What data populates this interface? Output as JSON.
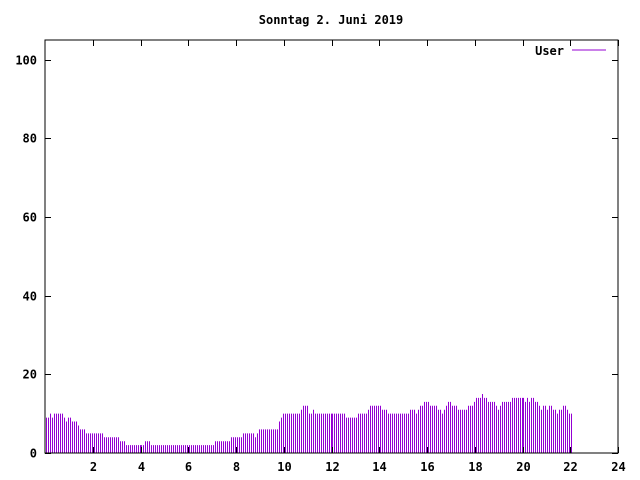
{
  "chart_data": {
    "type": "bar",
    "title": "Sonntag 2. Juni 2019",
    "xlabel": "",
    "ylabel": "",
    "xlim": [
      0,
      24
    ],
    "ylim": [
      0,
      105
    ],
    "x_ticks": [
      2,
      4,
      6,
      8,
      10,
      12,
      14,
      16,
      18,
      20,
      22,
      24
    ],
    "y_ticks": [
      0,
      20,
      40,
      60,
      80,
      100
    ],
    "grid": false,
    "legend_position": "top-right",
    "series": [
      {
        "name": "User",
        "color": "#9400d3",
        "interval_minutes": 5,
        "values": [
          9,
          9,
          10,
          9,
          10,
          10,
          10,
          10,
          10,
          9,
          8,
          9,
          9,
          8,
          8,
          8,
          7,
          6,
          6,
          6,
          5,
          5,
          5,
          5,
          5,
          5,
          5,
          5,
          5,
          4,
          4,
          4,
          4,
          4,
          4,
          4,
          4,
          3,
          3,
          3,
          2,
          2,
          2,
          2,
          2,
          2,
          2,
          2,
          2,
          2,
          3,
          3,
          3,
          2,
          2,
          2,
          2,
          2,
          2,
          2,
          2,
          2,
          2,
          2,
          2,
          2,
          2,
          2,
          2,
          2,
          2,
          2,
          2,
          2,
          2,
          2,
          2,
          2,
          2,
          2,
          2,
          2,
          2,
          2,
          2,
          3,
          3,
          3,
          3,
          3,
          3,
          3,
          3,
          4,
          4,
          4,
          4,
          4,
          4,
          5,
          5,
          5,
          5,
          5,
          5,
          4,
          5,
          6,
          6,
          6,
          6,
          6,
          6,
          6,
          6,
          6,
          6,
          8,
          9,
          10,
          10,
          10,
          10,
          10,
          10,
          10,
          10,
          10,
          11,
          12,
          12,
          12,
          10,
          10,
          11,
          10,
          10,
          10,
          10,
          10,
          10,
          10,
          10,
          10,
          10,
          10,
          10,
          10,
          10,
          10,
          10,
          9,
          9,
          9,
          9,
          9,
          9,
          10,
          10,
          10,
          10,
          10,
          11,
          12,
          12,
          12,
          12,
          12,
          12,
          11,
          11,
          11,
          10,
          10,
          10,
          10,
          10,
          10,
          10,
          10,
          10,
          10,
          10,
          11,
          11,
          11,
          10,
          11,
          12,
          12,
          13,
          13,
          13,
          12,
          12,
          12,
          12,
          11,
          11,
          10,
          11,
          12,
          13,
          13,
          12,
          12,
          12,
          11,
          11,
          11,
          11,
          11,
          12,
          12,
          12,
          13,
          14,
          14,
          14,
          15,
          14,
          14,
          13,
          13,
          13,
          13,
          12,
          11,
          12,
          13,
          13,
          13,
          13,
          13,
          14,
          14,
          14,
          14,
          14,
          14,
          14,
          13,
          14,
          13,
          14,
          14,
          13,
          13,
          12,
          11,
          12,
          12,
          11,
          12,
          12,
          11,
          11,
          10,
          11,
          11,
          12,
          12,
          11,
          10,
          10
        ]
      }
    ]
  }
}
